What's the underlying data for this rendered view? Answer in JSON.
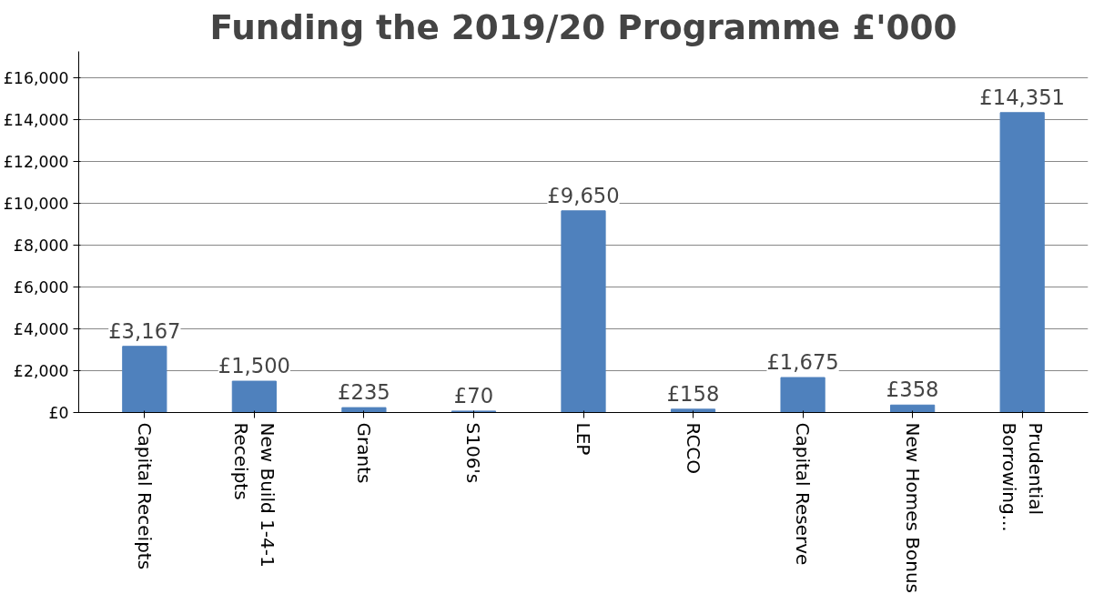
{
  "chart_data": {
    "type": "bar",
    "title": "Funding the 2019/20 Programme £'000",
    "categories": [
      "Capital Receipts",
      "New Build 1-4-1\nReceipts",
      "Grants",
      "S106's",
      "LEP",
      "RCCO",
      "Capital Reserve",
      "New Homes Bonus",
      "Prudential\nBorrowing..."
    ],
    "values": [
      3167,
      1500,
      235,
      70,
      9650,
      158,
      1675,
      358,
      14351
    ],
    "value_labels": [
      "£3,167",
      "£1,500",
      "£235",
      "£70",
      "£9,650",
      "£158",
      "£1,675",
      "£358",
      "£14,351"
    ],
    "color": "#4f81bd",
    "ylim": [
      0,
      16000
    ],
    "yticks": [
      {
        "value": 0,
        "label": "£0"
      },
      {
        "value": 2000,
        "label": "£2,000"
      },
      {
        "value": 4000,
        "label": "£4,000"
      },
      {
        "value": 6000,
        "label": "£6,000"
      },
      {
        "value": 8000,
        "label": "£8,000"
      },
      {
        "value": 10000,
        "label": "£10,000"
      },
      {
        "value": 12000,
        "label": "£12,000"
      },
      {
        "value": 14000,
        "label": "£14,000"
      },
      {
        "value": 16000,
        "label": "£16,000"
      }
    ],
    "grid": "y"
  }
}
